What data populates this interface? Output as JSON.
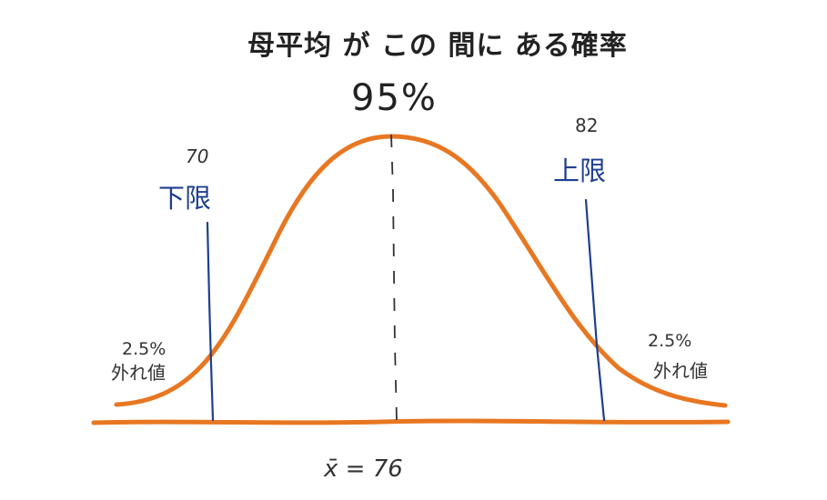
{
  "title": "母平均 が この 間に ある確率",
  "confidence": "95%",
  "lower": {
    "value": "70",
    "label": "下限"
  },
  "upper": {
    "value": "82",
    "label": "上限"
  },
  "tails": {
    "left": {
      "pct": "2.5%",
      "label": "外れ値"
    },
    "right": {
      "pct": "2.5%",
      "label": "外れ値"
    }
  },
  "mean_label": "x̄ = 76",
  "colors": {
    "curve": "#e87722",
    "bounds": "#1e3f8f",
    "ink": "#222222"
  }
}
